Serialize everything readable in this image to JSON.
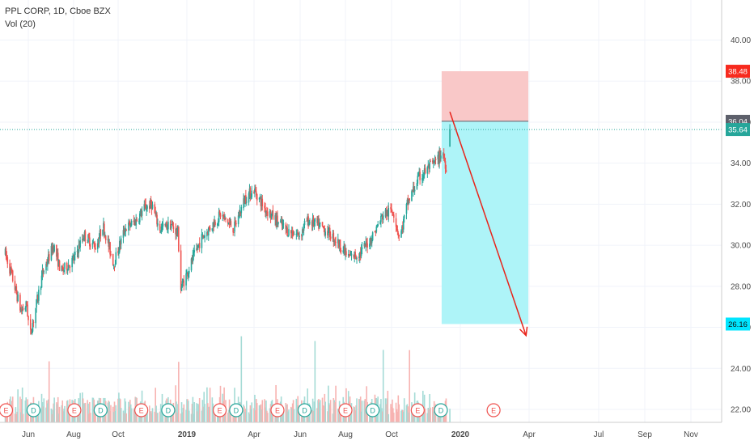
{
  "header": {
    "title": "PPL CORP, 1D, Cboe BZX",
    "volume_label": "Vol (20)"
  },
  "chart_data": {
    "type": "candlestick",
    "ticker": "PPL CORP",
    "interval": "1D",
    "exchange": "Cboe BZX",
    "ylim": [
      21.4,
      42.0
    ],
    "y_ticks": [
      22.0,
      24.0,
      26.0,
      28.0,
      30.0,
      32.0,
      34.0,
      36.0,
      38.0,
      40.0
    ],
    "x_ticks": [
      "Jun",
      "Aug",
      "Oct",
      "2019",
      "Apr",
      "Jun",
      "Aug",
      "Oct",
      "2020",
      "Apr",
      "Jul",
      "Sep",
      "Nov"
    ],
    "x_tick_bold": [
      "2019",
      "2020"
    ],
    "price_path": [
      [
        "2018-05-01",
        29.6
      ],
      [
        "2018-05-10",
        28.5
      ],
      [
        "2018-05-22",
        26.8
      ],
      [
        "2018-05-30",
        27.1
      ],
      [
        "2018-06-03",
        25.5
      ],
      [
        "2018-06-08",
        26.4
      ],
      [
        "2018-06-20",
        28.6
      ],
      [
        "2018-07-05",
        30.0
      ],
      [
        "2018-07-15",
        28.7
      ],
      [
        "2018-08-01",
        29.3
      ],
      [
        "2018-08-15",
        30.5
      ],
      [
        "2018-09-01",
        29.9
      ],
      [
        "2018-09-10",
        31.0
      ],
      [
        "2018-09-25",
        29.1
      ],
      [
        "2018-10-10",
        30.8
      ],
      [
        "2018-10-25",
        31.2
      ],
      [
        "2018-11-05",
        31.8
      ],
      [
        "2018-11-15",
        32.0
      ],
      [
        "2018-11-25",
        30.8
      ],
      [
        "2018-12-10",
        31.0
      ],
      [
        "2018-12-20",
        30.6
      ],
      [
        "2018-12-24",
        27.9
      ],
      [
        "2019-01-03",
        28.8
      ],
      [
        "2019-01-20",
        30.3
      ],
      [
        "2019-02-15",
        31.5
      ],
      [
        "2019-03-05",
        30.8
      ],
      [
        "2019-03-20",
        32.3
      ],
      [
        "2019-04-01",
        32.7
      ],
      [
        "2019-04-15",
        31.8
      ],
      [
        "2019-05-01",
        31.2
      ],
      [
        "2019-05-15",
        30.7
      ],
      [
        "2019-06-01",
        30.5
      ],
      [
        "2019-06-10",
        31.2
      ],
      [
        "2019-06-25",
        31.0
      ],
      [
        "2019-07-10",
        30.6
      ],
      [
        "2019-07-25",
        30.0
      ],
      [
        "2019-08-05",
        29.4
      ],
      [
        "2019-08-20",
        29.6
      ],
      [
        "2019-09-05",
        30.4
      ],
      [
        "2019-09-20",
        31.5
      ],
      [
        "2019-10-03",
        31.7
      ],
      [
        "2019-10-12",
        30.3
      ],
      [
        "2019-10-22",
        32.0
      ],
      [
        "2019-11-05",
        33.2
      ],
      [
        "2019-11-20",
        33.8
      ],
      [
        "2019-12-01",
        34.1
      ],
      [
        "2019-12-08",
        34.6
      ],
      [
        "2019-12-13",
        33.8
      ]
    ],
    "last_candle": {
      "date": "2019-12-18",
      "open": 34.8,
      "high": 35.9,
      "low": 34.8,
      "close": 35.64
    },
    "volume": {
      "note": "Volume bars (green = up day, red = down day), no volume axis printed",
      "spikes_on": [
        "2018-06-29",
        "2018-12-21",
        "2019-03-15",
        "2019-06-21",
        "2019-09-20",
        "2019-10-25",
        "2019-12-20"
      ]
    },
    "earnings_markers": {
      "E": [
        "2018-05-02",
        "2018-08-02",
        "2018-11-01",
        "2019-02-14",
        "2019-05-02",
        "2019-08-01",
        "2019-11-05",
        "2020-02-14"
      ],
      "D": [
        "2018-06-08",
        "2018-09-07",
        "2018-12-07",
        "2019-03-08",
        "2019-06-07",
        "2019-09-06",
        "2019-12-06"
      ]
    },
    "position_tool": {
      "type": "short",
      "entry": 36.04,
      "stop": 38.48,
      "target": 26.16,
      "start_date": "2019-12-07",
      "end_date": "2020-03-31",
      "profit_color": "#aef4f8",
      "loss_color": "#f9c8c8"
    },
    "arrow": {
      "from": [
        "2019-12-18",
        36.5
      ],
      "to": [
        "2020-03-28",
        25.6
      ],
      "color": "#e8231a"
    },
    "current_price": 35.64,
    "price_labels": [
      {
        "value": "38.48",
        "color": "#f72a1e"
      },
      {
        "value": "36.04",
        "color": "#5d606b"
      },
      {
        "value": "35.64",
        "color": "#26a69a"
      },
      {
        "value": "26.16",
        "color": "#00e5ff"
      }
    ],
    "colors": {
      "up": "#26a69a",
      "down": "#ef5350",
      "grid": "#f0f3fa",
      "axis_text": "#4a4a4a",
      "earnings": "#ef5350",
      "dividend": "#26a69a"
    }
  }
}
